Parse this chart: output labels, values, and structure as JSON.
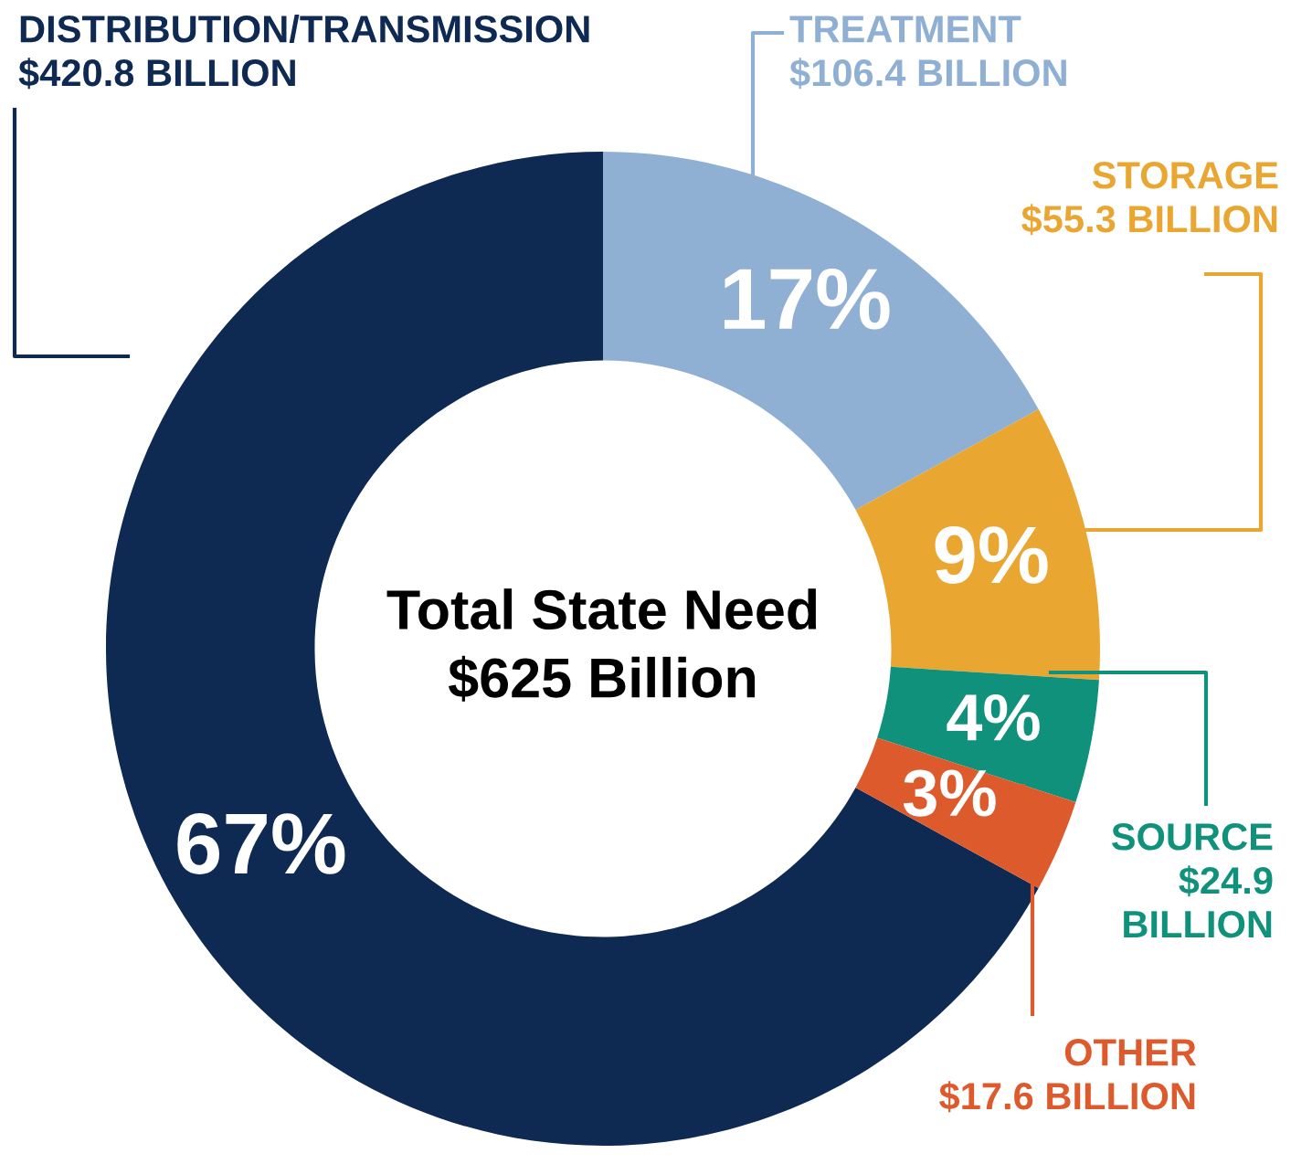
{
  "chart_data": {
    "type": "donut",
    "categories": [
      "DISTRIBUTION/TRANSMISSION\n$420.8 BILLION",
      "TREATMENT\n$106.4 BILLION",
      "STORAGE\n$55.3 BILLION",
      "SOURCE\n$24.9\nBILLION",
      "OTHER\n$17.6 BILLION"
    ],
    "values": [
      67,
      17,
      9,
      4,
      3
    ],
    "value_labels": [
      "67%",
      "17%",
      "9%",
      "4%",
      "3%"
    ],
    "colors": [
      "#0f2a52",
      "#8fb0d3",
      "#e9a631",
      "#10917b",
      "#dc5a2b"
    ],
    "annotations": [
      "Total State Need\n$625 Billion"
    ]
  }
}
